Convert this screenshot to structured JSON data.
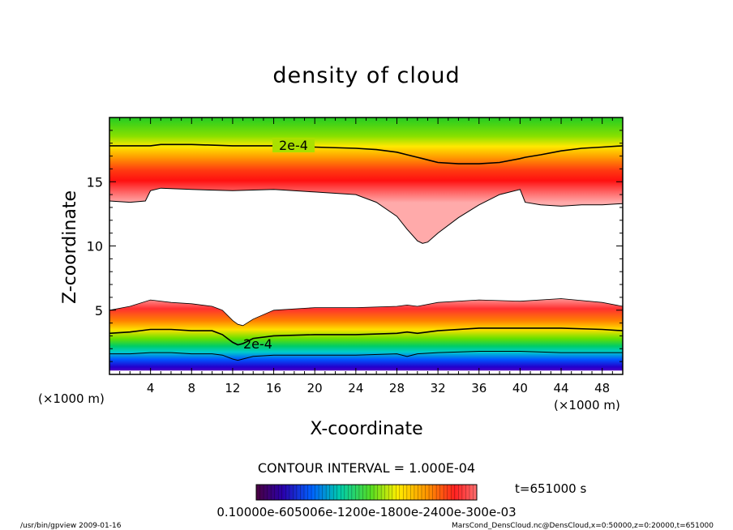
{
  "chart_data": {
    "type": "heatmap",
    "title": "density of cloud",
    "xlabel": "X-coordinate",
    "ylabel": "Z-coordinate",
    "x_unit": "(×1000 m)",
    "y_unit": "(×1000 m)",
    "xlim": [
      0,
      50
    ],
    "ylim": [
      0,
      20
    ],
    "x_ticks": [
      4,
      8,
      12,
      16,
      20,
      24,
      28,
      32,
      36,
      40,
      44,
      48
    ],
    "y_ticks": [
      5,
      10,
      15
    ],
    "contour_label": "2e-4",
    "contour_interval": "CONTOUR INTERVAL = 1.000E-04",
    "time": "t=651000 s",
    "colorbar_labels": "0.10000e-605006e-1200e-1800e-2400e-300e-03",
    "footer_left": "/usr/bin/gpview  2009-01-16",
    "footer_right": "MarsCond_DensCloud.nc@DensCloud,x=0:50000,z=0:20000,t=651000",
    "upper_layer": {
      "x": [
        0,
        2,
        3.5,
        4,
        5,
        8,
        12,
        16,
        20,
        24,
        26,
        28,
        29,
        30,
        30.5,
        31,
        32,
        34,
        36,
        38,
        40,
        40.5,
        42,
        44,
        46,
        48,
        50
      ],
      "bottom": [
        13.5,
        13.4,
        13.5,
        14.3,
        14.5,
        14.4,
        14.3,
        14.4,
        14.2,
        14.0,
        13.4,
        12.3,
        11.3,
        10.4,
        10.2,
        10.3,
        11.0,
        12.2,
        13.2,
        14.0,
        14.4,
        13.4,
        13.2,
        13.1,
        13.2,
        13.2,
        13.3
      ],
      "contour_2e4": [
        17.8,
        17.8,
        17.8,
        17.8,
        17.9,
        17.9,
        17.8,
        17.8,
        17.7,
        17.6,
        17.5,
        17.3,
        17.1,
        16.9,
        16.8,
        16.7,
        16.5,
        16.4,
        16.4,
        16.5,
        16.8,
        16.9,
        17.1,
        17.4,
        17.6,
        17.7,
        17.8
      ]
    },
    "lower_layer": {
      "x": [
        0,
        2,
        4,
        6,
        8,
        10,
        11,
        12,
        12.5,
        13,
        14,
        16,
        20,
        24,
        28,
        29,
        30,
        32,
        36,
        40,
        44,
        48,
        50
      ],
      "top": [
        5.0,
        5.3,
        5.8,
        5.6,
        5.5,
        5.3,
        5.0,
        4.2,
        3.9,
        3.8,
        4.3,
        5.0,
        5.2,
        5.2,
        5.3,
        5.4,
        5.3,
        5.6,
        5.8,
        5.7,
        5.9,
        5.6,
        5.3
      ],
      "contour_2e4": [
        3.2,
        3.3,
        3.5,
        3.5,
        3.4,
        3.4,
        3.1,
        2.5,
        2.3,
        2.4,
        2.8,
        3.0,
        3.1,
        3.1,
        3.2,
        3.3,
        3.2,
        3.4,
        3.6,
        3.6,
        3.6,
        3.5,
        3.4
      ],
      "contour_low": [
        1.6,
        1.6,
        1.7,
        1.7,
        1.6,
        1.6,
        1.5,
        1.2,
        1.1,
        1.2,
        1.4,
        1.5,
        1.5,
        1.5,
        1.6,
        1.4,
        1.6,
        1.7,
        1.8,
        1.8,
        1.7,
        1.7,
        1.7
      ]
    }
  }
}
